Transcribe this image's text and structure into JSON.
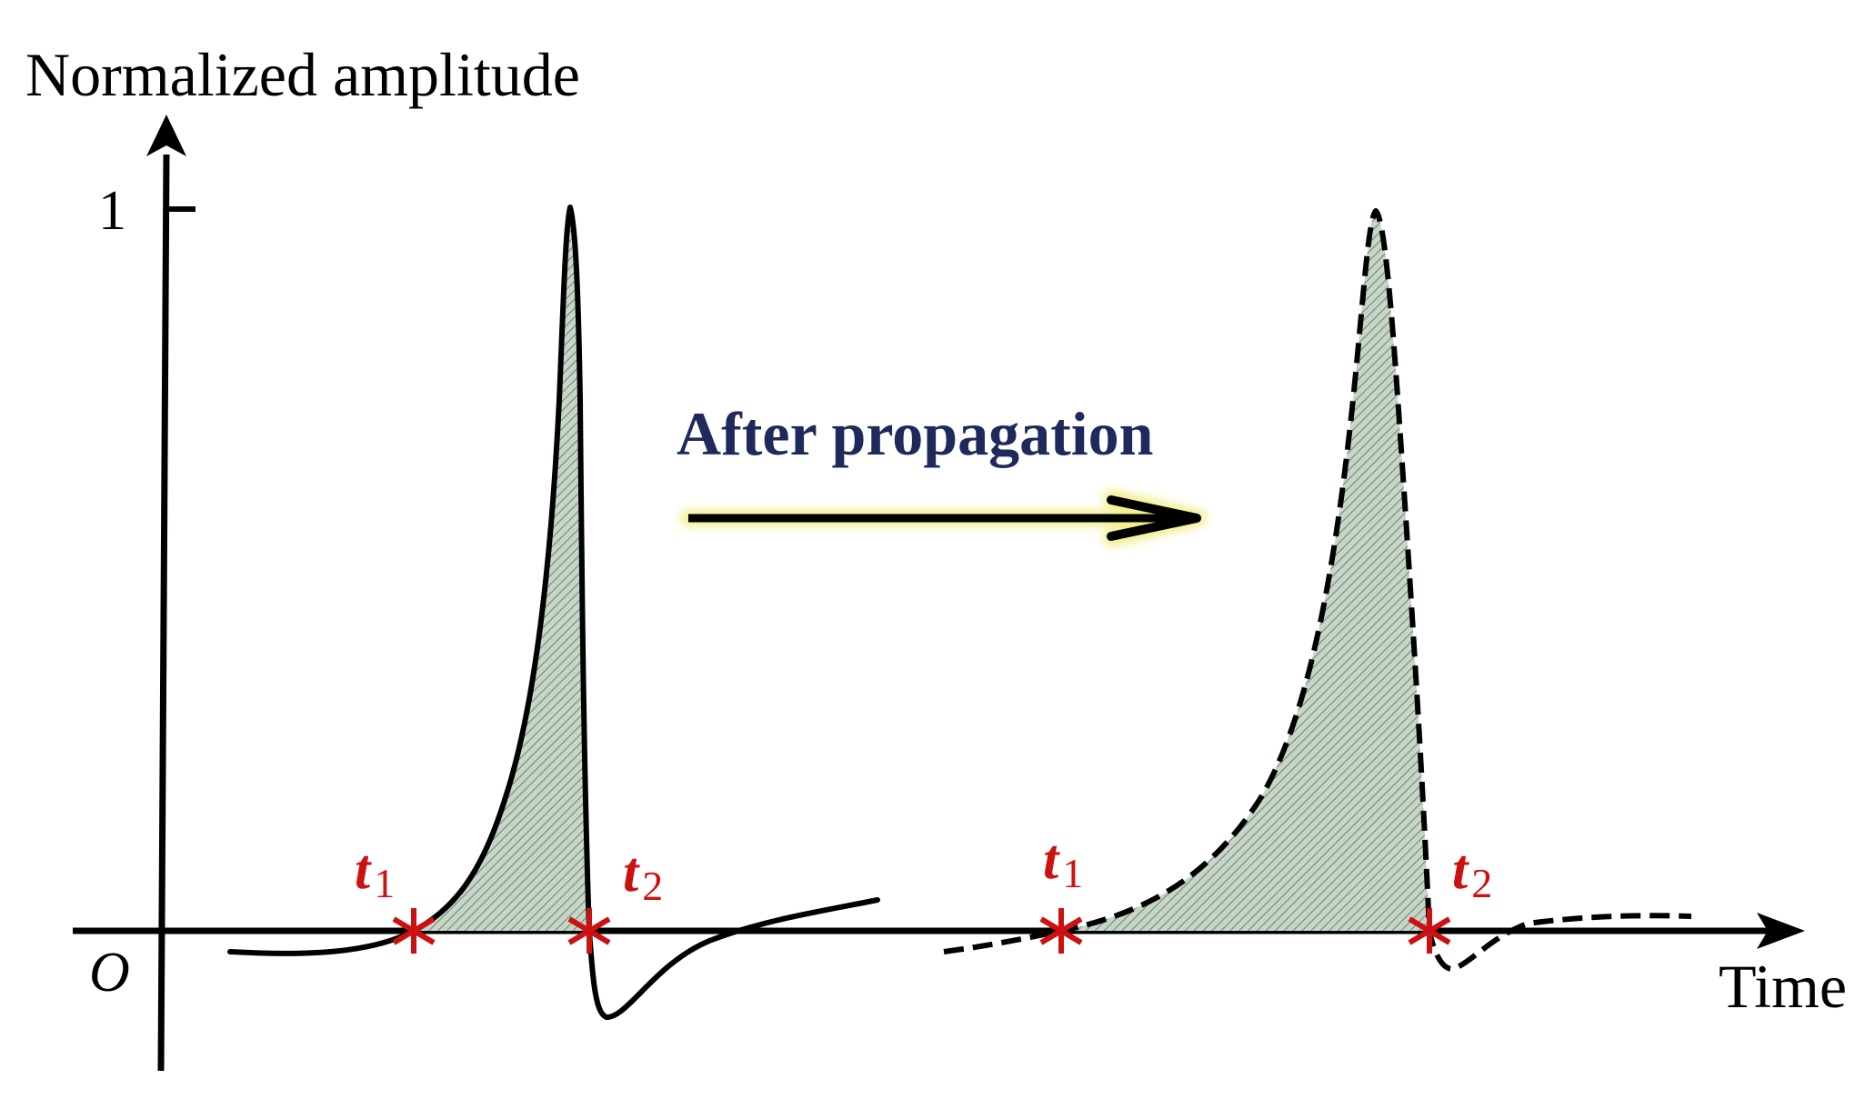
{
  "axes": {
    "y_title": "Normalized amplitude",
    "x_title": "Time",
    "origin_label": "O",
    "y_tick_label": "1"
  },
  "propagation": {
    "label": "After propagation"
  },
  "markers": {
    "t1_main": "t",
    "t1_sub": "1",
    "t2_main": "t",
    "t2_sub": "2"
  },
  "colors": {
    "axis": "#000000",
    "marker": "#cc1111",
    "label_text": "#1f2a5c",
    "fill": "#c7d6c8",
    "hatch": "#6f8a72",
    "glow": "#f2ee8a"
  }
}
